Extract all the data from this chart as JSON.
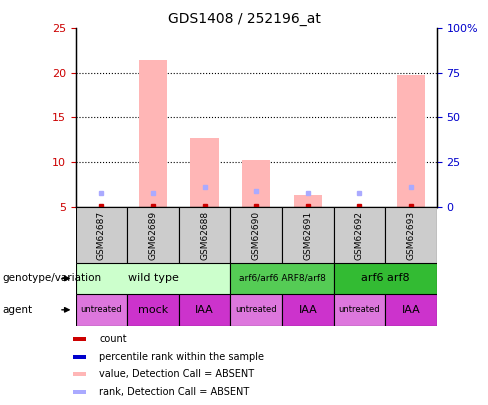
{
  "title": "GDS1408 / 252196_at",
  "samples": [
    "GSM62687",
    "GSM62689",
    "GSM62688",
    "GSM62690",
    "GSM62691",
    "GSM62692",
    "GSM62693"
  ],
  "bar_values": [
    5.0,
    21.5,
    12.7,
    10.2,
    6.3,
    5.0,
    19.8
  ],
  "bar_color": "#ffb6b6",
  "rank_squares": [
    6.5,
    6.5,
    7.2,
    6.8,
    6.5,
    6.5,
    7.2
  ],
  "rank_sq_color": "#aaaaff",
  "red_marker_vals": [
    5.0,
    5.0,
    5.0,
    5.0,
    5.0,
    5.0,
    5.0
  ],
  "ylim_left": [
    5,
    25
  ],
  "ylim_right": [
    0,
    100
  ],
  "yticks_left": [
    5,
    10,
    15,
    20,
    25
  ],
  "ytick_labels_left": [
    "5",
    "10",
    "15",
    "20",
    "25"
  ],
  "yticks_right": [
    0,
    25,
    50,
    75,
    100
  ],
  "ytick_labels_right": [
    "0",
    "25",
    "50",
    "75",
    "100%"
  ],
  "left_tick_color": "#cc0000",
  "right_tick_color": "#0000cc",
  "genotype_groups": [
    {
      "label": "wild type",
      "start": 0,
      "end": 3,
      "color": "#ccffcc"
    },
    {
      "label": "arf6/arf6 ARF8/arf8",
      "start": 3,
      "end": 5,
      "color": "#55cc55"
    },
    {
      "label": "arf6 arf8",
      "start": 5,
      "end": 7,
      "color": "#33bb33"
    }
  ],
  "agent_groups": [
    {
      "label": "untreated",
      "start": 0,
      "end": 1,
      "color": "#dd77dd"
    },
    {
      "label": "mock",
      "start": 1,
      "end": 2,
      "color": "#cc33cc"
    },
    {
      "label": "IAA",
      "start": 2,
      "end": 3,
      "color": "#cc33cc"
    },
    {
      "label": "untreated",
      "start": 3,
      "end": 4,
      "color": "#dd77dd"
    },
    {
      "label": "IAA",
      "start": 4,
      "end": 5,
      "color": "#cc33cc"
    },
    {
      "label": "untreated",
      "start": 5,
      "end": 6,
      "color": "#dd77dd"
    },
    {
      "label": "IAA",
      "start": 6,
      "end": 7,
      "color": "#cc33cc"
    }
  ],
  "legend_items": [
    {
      "label": "count",
      "color": "#cc0000"
    },
    {
      "label": "percentile rank within the sample",
      "color": "#0000cc"
    },
    {
      "label": "value, Detection Call = ABSENT",
      "color": "#ffb6b6"
    },
    {
      "label": "rank, Detection Call = ABSENT",
      "color": "#aaaaff"
    }
  ],
  "genotype_label": "genotype/variation",
  "agent_label": "agent",
  "sample_bg_color": "#cccccc",
  "background_color": "#ffffff"
}
